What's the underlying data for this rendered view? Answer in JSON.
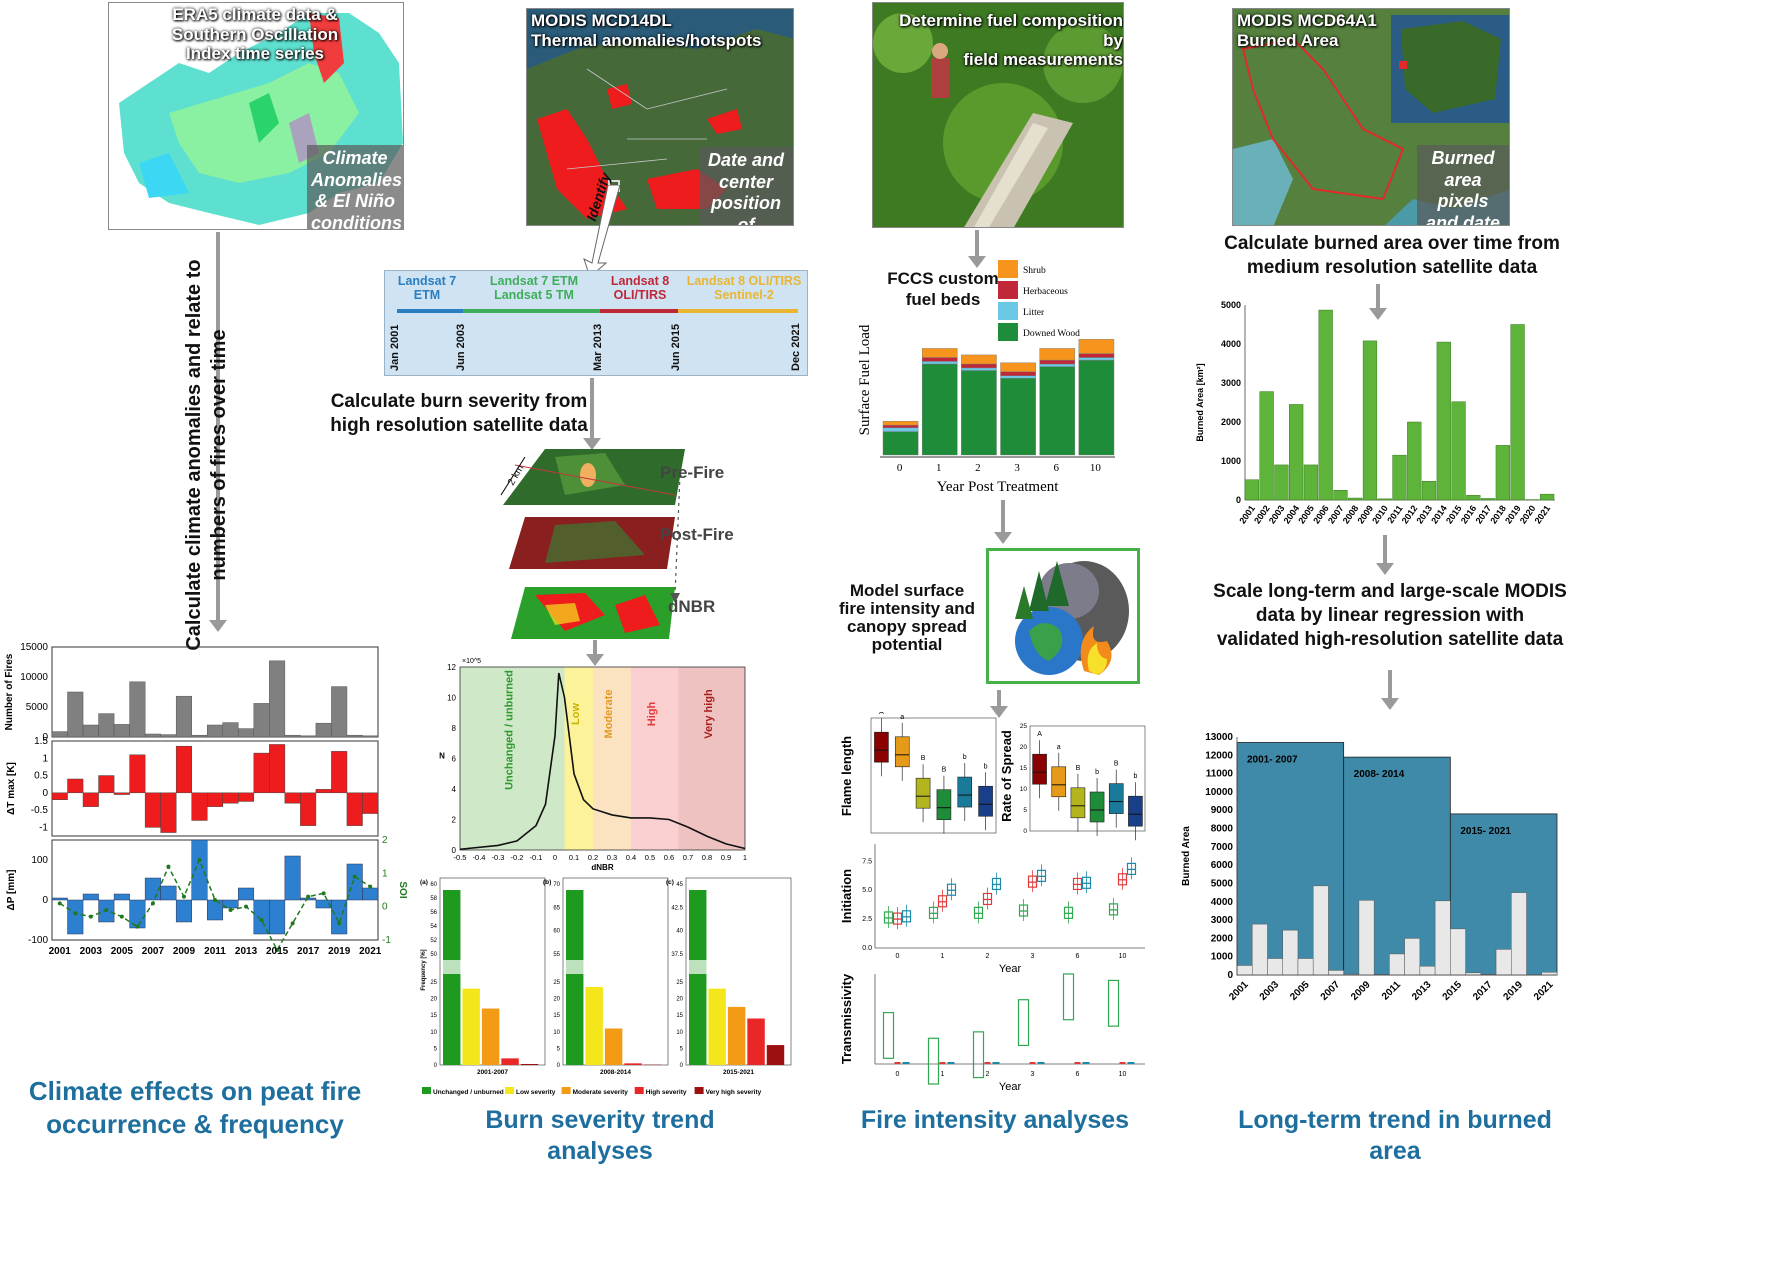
{
  "columns": {
    "col1": {
      "panel_title": "ERA5 climate data  &\nSouthern Oscillation\nIndex time series",
      "panel_caption": "Climate\nAnomalies\n& El Niño\nconditions",
      "step_text": "Calculate climate anomalies and relate to\nnumbers of fires over time",
      "footer": "Climate effects on peat fire\noccurrence & frequency"
    },
    "col2": {
      "panel_title": "MODIS MCD14DL\nThermal anomalies/hotspots",
      "panel_caption": "Date and\ncenter\nposition of\nfire pixels",
      "identify_label": "Identify",
      "step_text": "Calculate burn severity from\nhigh resolution satellite data",
      "layer_labels": [
        "Pre-Fire",
        "Post-Fire",
        "dNBR"
      ],
      "scale_label": "2 km",
      "footer": "Burn severity trend analyses"
    },
    "col3": {
      "panel_title": "Determine fuel composition by\nfield measurements",
      "fccs_label": "FCCS custom\nfuel beds",
      "model_text": "Model surface\nfire intensity and\ncanopy spread\npotential",
      "footer": "Fire intensity analyses"
    },
    "col4": {
      "panel_title": "MODIS MCD64A1\nBurned Area",
      "panel_caption": "Burned\narea pixels\nand date\nof burn",
      "step1": "Calculate burned area over time from\nmedium resolution satellite data",
      "step2": "Scale long-term and large-scale MODIS\ndata by linear regression with\nvalidated high-resolution satellite data",
      "footer": "Long-term trend in burned area"
    }
  },
  "timeline": {
    "segments": [
      {
        "label": "Landsat 7\nETM",
        "color": "#2a7fc0"
      },
      {
        "label": "Landsat 7 ETM\nLandsat 5 TM",
        "color": "#3fae5a"
      },
      {
        "label": "Landsat 8\nOLI/TIRS",
        "color": "#c0283a"
      },
      {
        "label": "Landsat 8 OLI/TIRS\nSentinel-2",
        "color": "#e9b632"
      }
    ],
    "dates": [
      "Jan 2001",
      "Jun 2003",
      "Mar 2013",
      "Jun 2015",
      "Dec 2021"
    ]
  },
  "chart_data": [
    {
      "id": "fires_count",
      "type": "bar",
      "ylabel": "Number of Fires",
      "yticks": [
        "0",
        "5000",
        "10000",
        "15000"
      ],
      "ylim": [
        0,
        15000
      ],
      "x": [
        2001,
        2002,
        2003,
        2004,
        2005,
        2006,
        2007,
        2008,
        2009,
        2010,
        2011,
        2012,
        2013,
        2014,
        2015,
        2016,
        2017,
        2018,
        2019,
        2020,
        2021
      ],
      "values": [
        900,
        7500,
        2000,
        3900,
        2100,
        9200,
        500,
        400,
        6800,
        300,
        2000,
        2400,
        1400,
        5600,
        12700,
        300,
        200,
        2300,
        8400,
        300,
        200
      ],
      "color": "#808080"
    },
    {
      "id": "temp_anom",
      "type": "bar",
      "ylabel": "ΔT max [K]",
      "yticks": [
        "-1",
        "-0.5",
        "0",
        "0.5",
        "1",
        "1.5"
      ],
      "ylim": [
        -1.25,
        1.5
      ],
      "x": [
        2001,
        2002,
        2003,
        2004,
        2005,
        2006,
        2007,
        2008,
        2009,
        2010,
        2011,
        2012,
        2013,
        2014,
        2015,
        2016,
        2017,
        2018,
        2019,
        2020,
        2021
      ],
      "values": [
        -0.2,
        0.4,
        -0.4,
        0.5,
        -0.05,
        1.1,
        -1.0,
        -1.15,
        1.35,
        -0.8,
        -0.4,
        -0.3,
        -0.25,
        1.15,
        1.4,
        -0.3,
        -0.95,
        0.1,
        1.2,
        -0.95,
        -0.6
      ],
      "color": "#ee1c1c"
    },
    {
      "id": "precip_anom",
      "type": "bar",
      "ylabel": "ΔP [mm]",
      "ylabel_right": "SOI",
      "yticks": [
        "-100",
        "0",
        "100"
      ],
      "yticks_right": [
        "-1",
        "0",
        "1",
        "2"
      ],
      "ylim": [
        -100,
        150
      ],
      "x": [
        2001,
        2002,
        2003,
        2004,
        2005,
        2006,
        2007,
        2008,
        2009,
        2010,
        2011,
        2012,
        2013,
        2014,
        2015,
        2016,
        2017,
        2018,
        2019,
        2020,
        2021
      ],
      "values": [
        5,
        -85,
        15,
        -55,
        15,
        -70,
        55,
        35,
        -55,
        150,
        -50,
        -20,
        30,
        -85,
        -85,
        110,
        5,
        -20,
        -85,
        90,
        30
      ],
      "soi": [
        0.1,
        -0.2,
        -0.3,
        -0.1,
        -0.3,
        -0.6,
        0.1,
        1.2,
        0.3,
        1.4,
        0.2,
        -0.1,
        0.0,
        -0.4,
        -1.3,
        -0.5,
        0.3,
        0.4,
        -0.5,
        0.9,
        0.6
      ],
      "xticks": [
        "2001",
        "2003",
        "2005",
        "2007",
        "2009",
        "2011",
        "2013",
        "2015",
        "2017",
        "2019",
        "2021"
      ],
      "color": "#2d7fcf",
      "soi_color": "#1f7a1f"
    },
    {
      "id": "dnbr_distribution",
      "type": "line",
      "xlabel": "dNBR",
      "ylabel": "N",
      "ymult": "×10^5",
      "xticks": [
        "-0.5",
        "-0.4",
        "-0.3",
        "-0.2",
        "-0.1",
        "0",
        "0.1",
        "0.2",
        "0.3",
        "0.4",
        "0.5",
        "0.6",
        "0.7",
        "0.8",
        "0.9",
        "1"
      ],
      "yticks": [
        "0",
        "2",
        "4",
        "6",
        "8",
        "10",
        "12"
      ],
      "xlim": [
        -0.5,
        1
      ],
      "ylim": [
        0,
        12
      ],
      "classes": [
        {
          "label": "Unchanged / unburned",
          "from": -0.5,
          "to": 0.05,
          "color": "#cfe8c8",
          "text_color": "#2e9a2e"
        },
        {
          "label": "Low",
          "from": 0.05,
          "to": 0.2,
          "color": "#fbf29a",
          "text_color": "#c8b400"
        },
        {
          "label": "Moderate",
          "from": 0.2,
          "to": 0.4,
          "color": "#fbe3c2",
          "text_color": "#e39a20"
        },
        {
          "label": "High",
          "from": 0.4,
          "to": 0.65,
          "color": "#f9cfcf",
          "text_color": "#e23a3a"
        },
        {
          "label": "Very high",
          "from": 0.65,
          "to": 1.0,
          "color": "#efc2c2",
          "text_color": "#a91c1c"
        }
      ],
      "curve_x": [
        -0.5,
        -0.3,
        -0.2,
        -0.1,
        -0.05,
        0.0,
        0.02,
        0.05,
        0.08,
        0.1,
        0.15,
        0.2,
        0.25,
        0.3,
        0.4,
        0.5,
        0.6,
        0.7,
        0.8,
        0.9,
        1.0
      ],
      "curve_y": [
        0.05,
        0.3,
        0.6,
        1.6,
        3.0,
        7.5,
        11.6,
        10.0,
        7.0,
        5.0,
        3.3,
        2.7,
        2.5,
        2.3,
        2.1,
        2.1,
        2.0,
        1.5,
        0.9,
        0.4,
        0.1
      ]
    },
    {
      "id": "severity_frequency",
      "type": "bar",
      "ylabel": "Frequency [%]",
      "panels": [
        {
          "tag": "(a)",
          "period": "2001-2007",
          "values": [
            58.5,
            23,
            17,
            2,
            0.3
          ],
          "yticks_low": [
            "0",
            "5",
            "10",
            "15",
            "20",
            "25"
          ],
          "yticks_high": [
            "50",
            "52",
            "54",
            "56",
            "58",
            "60"
          ]
        },
        {
          "tag": "(b)",
          "period": "2008-2014",
          "values": [
            65.5,
            23.5,
            11,
            0.5,
            0.1
          ],
          "yticks_low": [
            "0",
            "5",
            "10",
            "15",
            "20",
            "25"
          ],
          "yticks_high": [
            "55",
            "60",
            "65",
            "70"
          ]
        },
        {
          "tag": "(c)",
          "period": "2015-2021",
          "values": [
            41,
            23,
            17.5,
            14,
            6
          ],
          "yticks_low": [
            "0",
            "5",
            "10",
            "15",
            "20",
            "25"
          ],
          "yticks_high": [
            "37.5",
            "40",
            "42.5",
            "45"
          ]
        }
      ],
      "legend": [
        "Unchanged / unburned",
        "Low severity",
        "Moderate severity",
        "High severity",
        "Very high severity"
      ],
      "colors": [
        "#1e9a1e",
        "#f5e61c",
        "#f49b16",
        "#ea2727",
        "#9c1010"
      ]
    },
    {
      "id": "fuel_load",
      "type": "bar",
      "xlabel": "Year Post Treatment",
      "ylabel": "Surface Fuel Load",
      "categories": [
        "0",
        "1",
        "2",
        "3",
        "6",
        "10"
      ],
      "series": [
        {
          "name": "Downed Wood",
          "values": [
            18,
            70,
            65,
            59,
            68,
            73
          ],
          "color": "#1f8c3a"
        },
        {
          "name": "Litter",
          "values": [
            3,
            2,
            2,
            2,
            2,
            2
          ],
          "color": "#6cc6e6"
        },
        {
          "name": "Herbaceous",
          "values": [
            2,
            3,
            3,
            3,
            3,
            3
          ],
          "color": "#c0283a"
        },
        {
          "name": "Shrub",
          "values": [
            3,
            7,
            7,
            7,
            9,
            11
          ],
          "color": "#f7941d"
        }
      ]
    },
    {
      "id": "flame_length",
      "type": "box",
      "ylabel": "Flame length",
      "letters": [
        "A",
        "a",
        "B",
        "B",
        "b",
        "b"
      ],
      "colors": [
        "#8b0000",
        "#e69a1a",
        "#b3b51e",
        "#1f8c3a",
        "#1a7a9a",
        "#1a3f8a"
      ],
      "medians": [
        0.72,
        0.68,
        0.32,
        0.22,
        0.33,
        0.25
      ]
    },
    {
      "id": "rate_of_spread",
      "type": "box",
      "ylabel": "Rate of Spread",
      "yticks": [
        "0",
        "5",
        "10",
        "15",
        "20",
        "25"
      ],
      "letters": [
        "A",
        "a",
        "B",
        "b",
        "B",
        "b"
      ],
      "colors": [
        "#8b0000",
        "#e69a1a",
        "#b3b51e",
        "#1f8c3a",
        "#1a7a9a",
        "#1a3f8a"
      ],
      "medians": [
        14,
        11,
        6,
        5,
        7,
        4
      ]
    },
    {
      "id": "initiation",
      "type": "box",
      "ylabel": "Initiation",
      "xlabel": "Year",
      "xticks": [
        "0",
        "1",
        "2",
        "3",
        "6",
        "10"
      ],
      "yticks": [
        "0.0",
        "2.5",
        "5.0",
        "7.5"
      ],
      "medians_green": [
        2.6,
        3.0,
        3.0,
        3.2,
        3.0,
        3.3
      ],
      "medians_red": [
        2.5,
        4.0,
        4.2,
        5.7,
        5.5,
        5.9
      ],
      "medians_blue": [
        2.7,
        5.0,
        5.5,
        6.2,
        5.6,
        6.8
      ]
    },
    {
      "id": "transmissivity",
      "type": "box",
      "ylabel": "Transmissivity",
      "xlabel": "Year",
      "xticks": [
        "0",
        "1",
        "2",
        "3",
        "6",
        "10"
      ],
      "medians_green": [
        2.0,
        0,
        0.5,
        3.0,
        5.0,
        4.5
      ]
    },
    {
      "id": "modis_burned_area",
      "type": "bar",
      "ylabel": "Burned Area [km²]",
      "yticks": [
        "0",
        "1000",
        "2000",
        "3000",
        "4000",
        "5000"
      ],
      "ylim": [
        0,
        5000
      ],
      "categories": [
        "2001",
        "2002",
        "2003",
        "2004",
        "2005",
        "2006",
        "2007",
        "2008",
        "2009",
        "2010",
        "2011",
        "2012",
        "2013",
        "2014",
        "2015",
        "2016",
        "2017",
        "2018",
        "2019",
        "2020",
        "2021"
      ],
      "values": [
        520,
        2780,
        900,
        2450,
        900,
        4870,
        250,
        50,
        4080,
        30,
        1150,
        2000,
        480,
        4050,
        2520,
        120,
        40,
        1400,
        4500,
        10,
        150
      ],
      "color": "#5eb33a"
    },
    {
      "id": "long_term_burned_area",
      "type": "bar",
      "ylabel": "Burned Area",
      "yticks": [
        "0",
        "1000",
        "2000",
        "3000",
        "4000",
        "5000",
        "6000",
        "7000",
        "8000",
        "9000",
        "10000",
        "11000",
        "12000",
        "13000"
      ],
      "ylim": [
        0,
        13000
      ],
      "xticks": [
        "2001",
        "2003",
        "2005",
        "2007",
        "2009",
        "2011",
        "2013",
        "2015",
        "2017",
        "2019",
        "2021"
      ],
      "periods": [
        {
          "label": "2001- 2007",
          "value": 12700,
          "from": 2001,
          "to": 2007
        },
        {
          "label": "2008- 2014",
          "value": 11900,
          "from": 2008,
          "to": 2014
        },
        {
          "label": "2015- 2021",
          "value": 8800,
          "from": 2015,
          "to": 2021
        }
      ],
      "annual": [
        520,
        2780,
        900,
        2450,
        900,
        4870,
        250,
        50,
        4080,
        30,
        1150,
        2000,
        480,
        4050,
        2520,
        120,
        40,
        1400,
        4500,
        10,
        150
      ],
      "period_color": "#3f8aa8",
      "annual_color": "#e8e8e8"
    }
  ]
}
